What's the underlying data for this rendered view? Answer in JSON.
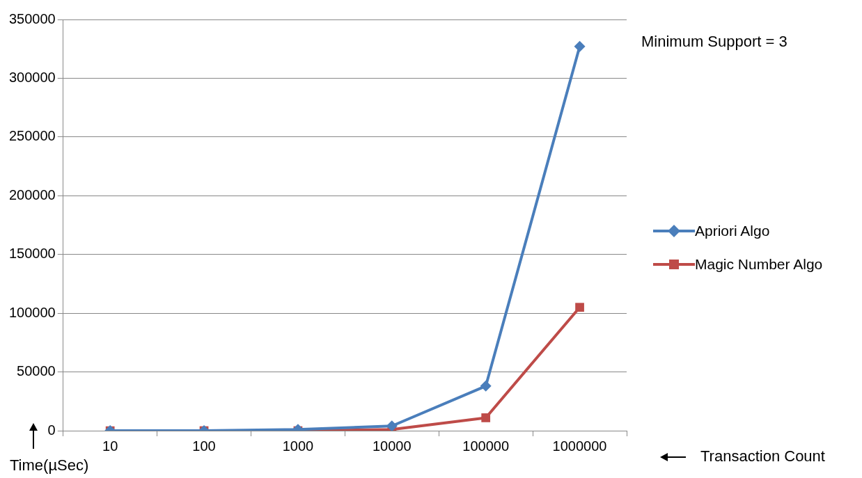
{
  "chart_data": {
    "type": "line",
    "xlabel": "Transaction Count",
    "ylabel": "Time(µSec)",
    "annotations": [
      "Minimum Support = 3"
    ],
    "categories": [
      "10",
      "100",
      "1000",
      "10000",
      "100000",
      "1000000"
    ],
    "series": [
      {
        "name": "Apriori Algo",
        "color": "#4a7ebb",
        "marker": "diamond",
        "values": [
          0,
          0,
          1000,
          4000,
          38000,
          327000
        ]
      },
      {
        "name": "Magic Number Algo",
        "color": "#be4b48",
        "marker": "square",
        "values": [
          0,
          0,
          0,
          1000,
          11000,
          105000
        ]
      }
    ],
    "ylim": [
      0,
      350000
    ],
    "yticks": [
      0,
      50000,
      100000,
      150000,
      200000,
      250000,
      300000,
      350000
    ],
    "grid": "y",
    "legend": "right",
    "line_style": "solid"
  }
}
